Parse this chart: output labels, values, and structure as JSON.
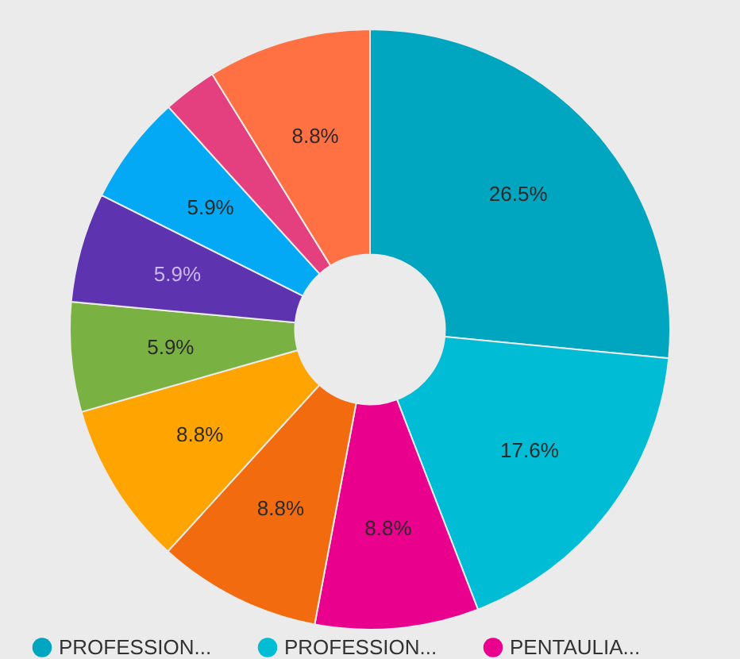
{
  "chart_data": {
    "type": "donut",
    "categories": [
      "PROFESSION...",
      "PROFESSION...",
      "PENTAULIA...",
      null,
      null,
      null,
      null,
      null,
      null,
      null
    ],
    "values": [
      26.5,
      17.6,
      8.8,
      8.8,
      8.8,
      5.9,
      5.9,
      5.9,
      2.9,
      8.8
    ],
    "colors": [
      "#00a5bf",
      "#00bcd4",
      "#e9008c",
      "#f26b0f",
      "#ffa400",
      "#79b143",
      "#5d33b0",
      "#03a9f4",
      "#e4407f",
      "#ff7043"
    ],
    "value_labels": [
      "26.5%",
      "17.6%",
      "8.8%",
      "8.8%",
      "8.8%",
      "5.9%",
      "5.9%",
      "5.9%",
      null,
      "8.8%"
    ],
    "legend": "bottom"
  }
}
